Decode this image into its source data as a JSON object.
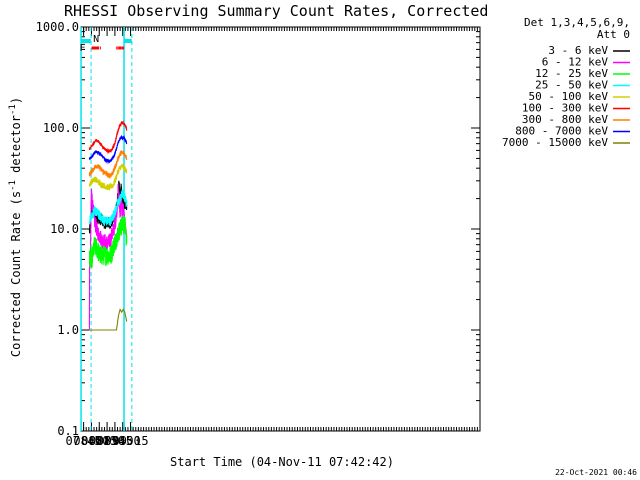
{
  "chart_data": {
    "type": "line",
    "title": "RHESSI Observing Summary Count Rates, Corrected",
    "xlabel": "Start Time (04-Nov-11 07:42:42)",
    "ylabel_main": "Corrected Count Rate (s",
    "ylabel_sup1": "-1",
    "ylabel_mid": " detector",
    "ylabel_sup2": "-1",
    "ylabel_end": ")",
    "yscale": "log",
    "ylim": [
      0.1,
      1000
    ],
    "y_ticks": [
      {
        "value": 1000,
        "label": "1000.0"
      },
      {
        "value": 100,
        "label": "100.0"
      },
      {
        "value": 10,
        "label": "10.0"
      },
      {
        "value": 1,
        "label": "1.0"
      },
      {
        "value": 0.1,
        "label": "0.1"
      }
    ],
    "xlim_min": [
      460,
      1225
    ],
    "x_ticks": [
      {
        "min": 465,
        "label": "07:45"
      },
      {
        "min": 480,
        "label": "08:00"
      },
      {
        "min": 495,
        "label": "08:15"
      },
      {
        "min": 510,
        "label": "08:30"
      },
      {
        "min": 525,
        "label": "08:45"
      },
      {
        "min": 540,
        "label": "09:00"
      },
      {
        "min": 555,
        "label": "09:15"
      }
    ],
    "legend_title_1": "Det 1,3,4,5,6,9,",
    "legend_title_2": "Att 0",
    "legend_position": "top-right",
    "footer": "22-Oct-2021 00:46",
    "annotations": {
      "night_label": "N",
      "flare_label": "F"
    },
    "series": [
      {
        "name": "3 - 6 keV",
        "color": "#000000",
        "start": 476.2,
        "end": 547.8,
        "points": [
          [
            476.2,
            9.5
          ],
          [
            478,
            10
          ],
          [
            480,
            16
          ],
          [
            482,
            16
          ],
          [
            484,
            15
          ],
          [
            486,
            14
          ],
          [
            488,
            13.5
          ],
          [
            490,
            13
          ],
          [
            493,
            13
          ],
          [
            496,
            12.5
          ],
          [
            499,
            12.5
          ],
          [
            502,
            12
          ],
          [
            505,
            11.5
          ],
          [
            508,
            11.5
          ],
          [
            511,
            11.5
          ],
          [
            514,
            11.5
          ],
          [
            517,
            11.5
          ],
          [
            520,
            12
          ],
          [
            523,
            13
          ],
          [
            526,
            14
          ],
          [
            529,
            17
          ],
          [
            531,
            22
          ],
          [
            533,
            28
          ],
          [
            535,
            20
          ],
          [
            537,
            25
          ],
          [
            539,
            20
          ],
          [
            541,
            18
          ],
          [
            543,
            18
          ],
          [
            545,
            18
          ],
          [
            547.8,
            17
          ]
        ]
      },
      {
        "name": "6 - 12 keV",
        "color": "#ff00ff",
        "start": 476.2,
        "end": 547.8,
        "points": [
          [
            476.2,
            1
          ],
          [
            476.5,
            5
          ],
          [
            478,
            5
          ],
          [
            480,
            24
          ],
          [
            482,
            18
          ],
          [
            484,
            14
          ],
          [
            486,
            12
          ],
          [
            488,
            11
          ],
          [
            490,
            10
          ],
          [
            493,
            9
          ],
          [
            496,
            8.5
          ],
          [
            499,
            8
          ],
          [
            502,
            7.5
          ],
          [
            505,
            7.5
          ],
          [
            508,
            7.5
          ],
          [
            511,
            7
          ],
          [
            514,
            7.5
          ],
          [
            517,
            8
          ],
          [
            520,
            9
          ],
          [
            523,
            10
          ],
          [
            526,
            12
          ],
          [
            529,
            16
          ],
          [
            531,
            24
          ],
          [
            533,
            18
          ],
          [
            535,
            14
          ],
          [
            537,
            20
          ],
          [
            539,
            14
          ],
          [
            541,
            16
          ],
          [
            543,
            12
          ],
          [
            545,
            10
          ],
          [
            547.8,
            9
          ]
        ]
      },
      {
        "name": "12 - 25 keV",
        "color": "#00ff00",
        "start": 476.2,
        "end": 547.8,
        "points": [
          [
            476.2,
            5
          ],
          [
            479,
            5.5
          ],
          [
            480,
            4.5
          ],
          [
            482,
            5.5
          ],
          [
            484,
            6
          ],
          [
            486,
            7
          ],
          [
            488,
            6.5
          ],
          [
            490,
            6.5
          ],
          [
            493,
            6
          ],
          [
            496,
            5.5
          ],
          [
            499,
            5.5
          ],
          [
            502,
            5.5
          ],
          [
            505,
            5.5
          ],
          [
            508,
            5.5
          ],
          [
            511,
            5.5
          ],
          [
            514,
            5.5
          ],
          [
            517,
            5.5
          ],
          [
            520,
            6
          ],
          [
            523,
            7
          ],
          [
            526,
            7.5
          ],
          [
            529,
            8.5
          ],
          [
            531,
            9
          ],
          [
            533,
            9.5
          ],
          [
            535,
            10
          ],
          [
            537,
            10.5
          ],
          [
            539,
            11
          ],
          [
            541,
            11
          ],
          [
            543,
            11
          ],
          [
            545,
            10.5
          ],
          [
            547.8,
            7
          ]
        ]
      },
      {
        "name": "25 - 50 keV",
        "color": "#00ffff",
        "start": 476.2,
        "end": 547.8,
        "points": [
          [
            476.2,
            12
          ],
          [
            478,
            13
          ],
          [
            480,
            13.5
          ],
          [
            482,
            14
          ],
          [
            484,
            14.5
          ],
          [
            486,
            15
          ],
          [
            488,
            15
          ],
          [
            490,
            14.5
          ],
          [
            493,
            14
          ],
          [
            496,
            13.5
          ],
          [
            499,
            13
          ],
          [
            502,
            12.5
          ],
          [
            505,
            12
          ],
          [
            508,
            12
          ],
          [
            511,
            12
          ],
          [
            514,
            12
          ],
          [
            517,
            12
          ],
          [
            520,
            13
          ],
          [
            523,
            14
          ],
          [
            526,
            15
          ],
          [
            529,
            17
          ],
          [
            531,
            18
          ],
          [
            533,
            19
          ],
          [
            535,
            20
          ],
          [
            537,
            21
          ],
          [
            539,
            22
          ],
          [
            541,
            22
          ],
          [
            543,
            21
          ],
          [
            545,
            20
          ],
          [
            547.8,
            17
          ]
        ]
      },
      {
        "name": "50 - 100 keV",
        "color": "#d0d000",
        "start": 476.2,
        "end": 547.8,
        "points": [
          [
            476.2,
            28
          ],
          [
            479,
            29
          ],
          [
            482,
            30
          ],
          [
            485,
            31
          ],
          [
            488,
            31
          ],
          [
            491,
            30
          ],
          [
            494,
            29
          ],
          [
            497,
            28
          ],
          [
            500,
            27.5
          ],
          [
            503,
            27
          ],
          [
            506,
            26.5
          ],
          [
            509,
            26
          ],
          [
            512,
            26
          ],
          [
            515,
            26
          ],
          [
            518,
            26.5
          ],
          [
            521,
            27
          ],
          [
            524,
            29
          ],
          [
            527,
            32
          ],
          [
            530,
            36
          ],
          [
            533,
            39
          ],
          [
            536,
            41
          ],
          [
            539,
            42
          ],
          [
            542,
            41
          ],
          [
            545,
            39
          ],
          [
            547.8,
            37
          ]
        ]
      },
      {
        "name": "100 - 300 keV",
        "color": "#ff0000",
        "start": 476.2,
        "end": 547.8,
        "points": [
          [
            476.2,
            62
          ],
          [
            479,
            64
          ],
          [
            482,
            68
          ],
          [
            485,
            72
          ],
          [
            488,
            75
          ],
          [
            491,
            75
          ],
          [
            494,
            73
          ],
          [
            497,
            70
          ],
          [
            500,
            67
          ],
          [
            503,
            64
          ],
          [
            506,
            62
          ],
          [
            509,
            60
          ],
          [
            512,
            59
          ],
          [
            515,
            59
          ],
          [
            518,
            60
          ],
          [
            521,
            63
          ],
          [
            524,
            68
          ],
          [
            527,
            78
          ],
          [
            530,
            90
          ],
          [
            533,
            102
          ],
          [
            536,
            110
          ],
          [
            539,
            112
          ],
          [
            542,
            110
          ],
          [
            545,
            105
          ],
          [
            547.8,
            98
          ]
        ]
      },
      {
        "name": "300 - 800 keV",
        "color": "#ff8000",
        "start": 476.2,
        "end": 547.8,
        "points": [
          [
            476.2,
            35
          ],
          [
            479,
            36
          ],
          [
            482,
            38
          ],
          [
            485,
            40
          ],
          [
            488,
            42
          ],
          [
            491,
            42
          ],
          [
            494,
            41
          ],
          [
            497,
            40
          ],
          [
            500,
            38
          ],
          [
            503,
            37
          ],
          [
            506,
            36
          ],
          [
            509,
            35
          ],
          [
            512,
            34
          ],
          [
            515,
            34
          ],
          [
            518,
            35
          ],
          [
            521,
            36
          ],
          [
            524,
            39
          ],
          [
            527,
            43
          ],
          [
            530,
            48
          ],
          [
            533,
            53
          ],
          [
            536,
            56
          ],
          [
            539,
            57
          ],
          [
            542,
            56
          ],
          [
            545,
            54
          ],
          [
            547.8,
            50
          ]
        ]
      },
      {
        "name": "800 - 7000 keV",
        "color": "#0000ff",
        "start": 476.2,
        "end": 547.8,
        "points": [
          [
            476.2,
            50
          ],
          [
            479,
            51
          ],
          [
            482,
            53
          ],
          [
            485,
            56
          ],
          [
            488,
            58
          ],
          [
            491,
            58
          ],
          [
            494,
            57
          ],
          [
            497,
            55
          ],
          [
            500,
            53
          ],
          [
            503,
            51
          ],
          [
            506,
            49
          ],
          [
            509,
            48
          ],
          [
            512,
            47
          ],
          [
            515,
            47
          ],
          [
            518,
            48
          ],
          [
            521,
            50
          ],
          [
            524,
            54
          ],
          [
            527,
            60
          ],
          [
            530,
            68
          ],
          [
            533,
            76
          ],
          [
            536,
            80
          ],
          [
            539,
            81
          ],
          [
            542,
            80
          ],
          [
            545,
            76
          ],
          [
            547.8,
            70
          ]
        ]
      },
      {
        "name": "7000 - 15000 keV",
        "color": "#808000",
        "start": 476.2,
        "end": 547.8,
        "points": [
          [
            476.2,
            1
          ],
          [
            484,
            1
          ],
          [
            492,
            1
          ],
          [
            500,
            1
          ],
          [
            508,
            1
          ],
          [
            516,
            1
          ],
          [
            524,
            1
          ],
          [
            528,
            1
          ],
          [
            532,
            1.4
          ],
          [
            535,
            1.6
          ],
          [
            538,
            1.5
          ],
          [
            541,
            1.6
          ],
          [
            544,
            1.5
          ],
          [
            547.8,
            1.2
          ]
        ]
      }
    ]
  }
}
